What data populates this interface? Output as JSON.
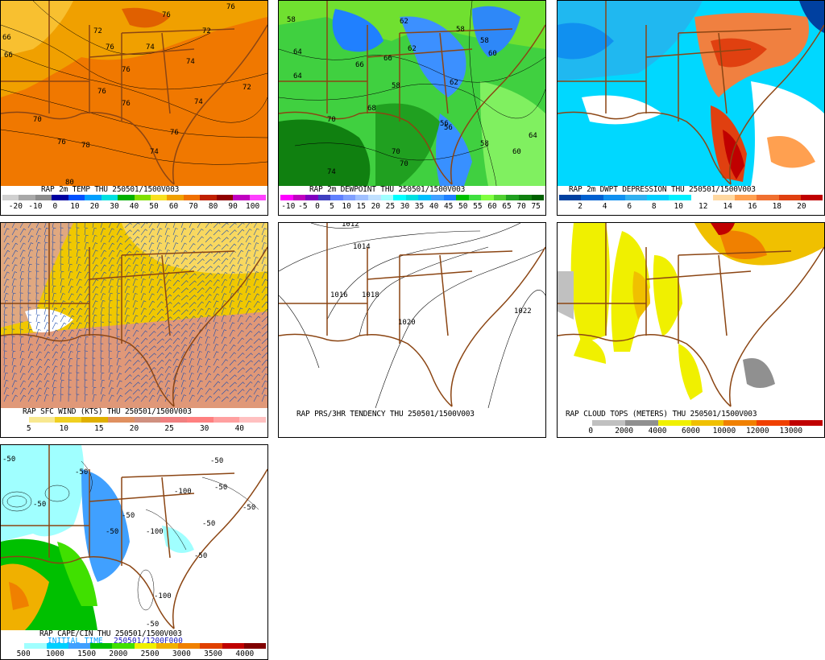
{
  "panels": {
    "temp": {
      "title": "RAP 2m TEMP THU 250501/1500V003",
      "colors": [
        "#d0d0d0",
        "#a8a8a8",
        "#8c8c8c",
        "#0000a0",
        "#0050ff",
        "#00a0ff",
        "#00e0e0",
        "#00b000",
        "#80e000",
        "#f8e020",
        "#f0a000",
        "#f07000",
        "#c02000",
        "#900000",
        "#c000c0",
        "#ff40ff"
      ],
      "ticks": [
        "-20",
        "-10",
        "0",
        "10",
        "20",
        "30",
        "40",
        "50",
        "60",
        "70",
        "80",
        "90",
        "100"
      ],
      "contour_labels": [
        "66",
        "66",
        "72",
        "76",
        "76",
        "74",
        "76",
        "72",
        "74",
        "76",
        "74",
        "72",
        "70",
        "76",
        "76",
        "78",
        "80",
        "74",
        "76",
        "76"
      ]
    },
    "dewpoint": {
      "title": "RAP 2m DEWPOINT THU 250501/1500V003",
      "colors": [
        "#ff00ff",
        "#c000c0",
        "#8000c0",
        "#4040c0",
        "#6080ff",
        "#80a0ff",
        "#a0c0ff",
        "#c0e0ff",
        "#a0ffff",
        "#00ffff",
        "#00e0e0",
        "#00c0ff",
        "#40a0ff",
        "#2080ff",
        "#00c000",
        "#40e040",
        "#80ff40",
        "#50d030",
        "#20a020",
        "#108010",
        "#006000"
      ],
      "ticks": [
        "-10",
        "-5",
        "0",
        "5",
        "10",
        "15",
        "20",
        "25",
        "30",
        "35",
        "40",
        "45",
        "50",
        "55",
        "60",
        "65",
        "70",
        "75"
      ],
      "contour_labels": [
        "58",
        "62",
        "64",
        "66",
        "58",
        "62",
        "60",
        "58",
        "64",
        "66",
        "68",
        "62",
        "56",
        "58",
        "70",
        "74",
        "70",
        "70",
        "56",
        "60",
        "64",
        "58"
      ]
    },
    "dwpt_dep": {
      "title": "RAP 2m DWPT DEPRESSION THU 250501/1500V003",
      "colors": [
        "#0040a0",
        "#0060d0",
        "#1090f0",
        "#30b0f0",
        "#00d0ff",
        "#00f0ff",
        "#ffffff",
        "#ffd8a0",
        "#ffa050",
        "#f07030",
        "#e04010",
        "#c00000"
      ],
      "ticks": [
        "2",
        "4",
        "6",
        "8",
        "10",
        "12",
        "14",
        "16",
        "18",
        "20"
      ]
    },
    "wind": {
      "title": "RAP SFC WIND (KTS) THU 250501/1500V003",
      "colors": [
        "#ffffff",
        "#f8e890",
        "#f0d020",
        "#e0b000",
        "#e09060",
        "#d09080",
        "#f08080",
        "#ff8080",
        "#ffa0a0",
        "#ffc0c0"
      ],
      "ticks": [
        "5",
        "10",
        "15",
        "20",
        "25",
        "30",
        "40"
      ]
    },
    "prs": {
      "title": "RAP PRS/3HR TENDENCY THU 250501/1500V003",
      "contour_labels": [
        "1012",
        "1014",
        "1016",
        "1018",
        "1020",
        "1022"
      ]
    },
    "cloud": {
      "title": "RAP CLOUD TOPS (METERS) THU 250501/1500V003",
      "colors": [
        "#ffffff",
        "#c0c0c0",
        "#909090",
        "#f0f000",
        "#f0c000",
        "#f08000",
        "#f04000",
        "#c00000"
      ],
      "ticks": [
        "0",
        "2000",
        "4000",
        "6000",
        "10000",
        "12000",
        "13000"
      ]
    },
    "cape": {
      "title": "RAP CAPE/CIN THU 250501/1500V003",
      "subtitle_left": "INITIAL TIME",
      "subtitle_right": "250501/1200F000",
      "colors": [
        "#ffffff",
        "#a0ffff",
        "#00d0ff",
        "#40a0ff",
        "#00c000",
        "#40e000",
        "#f0f000",
        "#f0b000",
        "#f08000",
        "#e04000",
        "#c00000",
        "#800000"
      ],
      "ticks": [
        "500",
        "1000",
        "1500",
        "2000",
        "2500",
        "3000",
        "3500",
        "4000"
      ],
      "contour_labels": [
        "-50",
        "-50",
        "-50",
        "-50",
        "-50",
        "-50",
        "-100",
        "-50",
        "-50",
        "-50",
        "-100",
        "-50",
        "-100",
        "-50"
      ]
    }
  }
}
